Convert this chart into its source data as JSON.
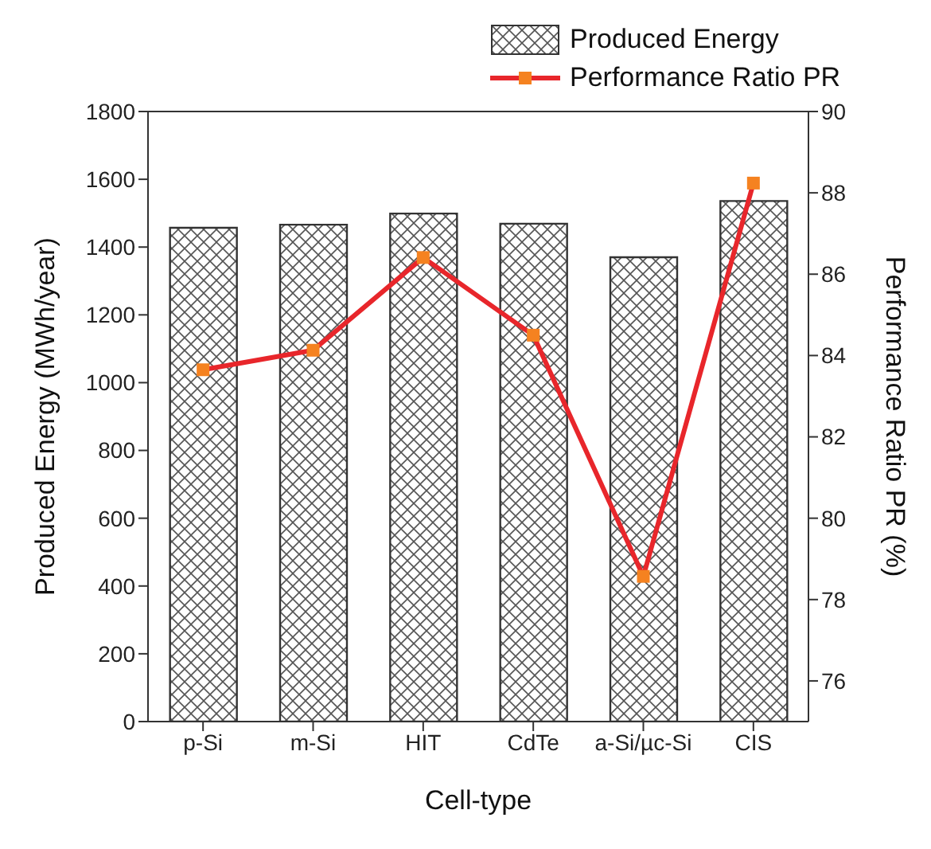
{
  "chart_data": {
    "type": "bar",
    "xlabel": "Cell-type",
    "ylabel": "Produced Energy (MWh/year)",
    "y2label": "Performance Ratio PR (%)",
    "categories": [
      "p-Si",
      "m-Si",
      "HIT",
      "CdTe",
      "a-Si/µc-Si",
      "CIS"
    ],
    "series": [
      {
        "name": "Produced Energy",
        "color": "#333333",
        "values": [
          1457,
          1466,
          1499,
          1469,
          1370,
          1536
        ]
      },
      {
        "name": "Performance Ratio PR",
        "type": "line",
        "axis": "y2",
        "color": "#e8262b",
        "marker": "square",
        "values": [
          83.65,
          84.13,
          86.41,
          84.5,
          78.57,
          88.24
        ]
      }
    ],
    "ylim": [
      0,
      1800
    ],
    "yticks": [
      0,
      200,
      400,
      600,
      800,
      1000,
      1200,
      1400,
      1600,
      1800
    ],
    "y2lim": [
      75,
      90
    ],
    "y2ticks": [
      76,
      78,
      80,
      82,
      84,
      86,
      88,
      90
    ],
    "legend": "top right",
    "grid": false
  }
}
